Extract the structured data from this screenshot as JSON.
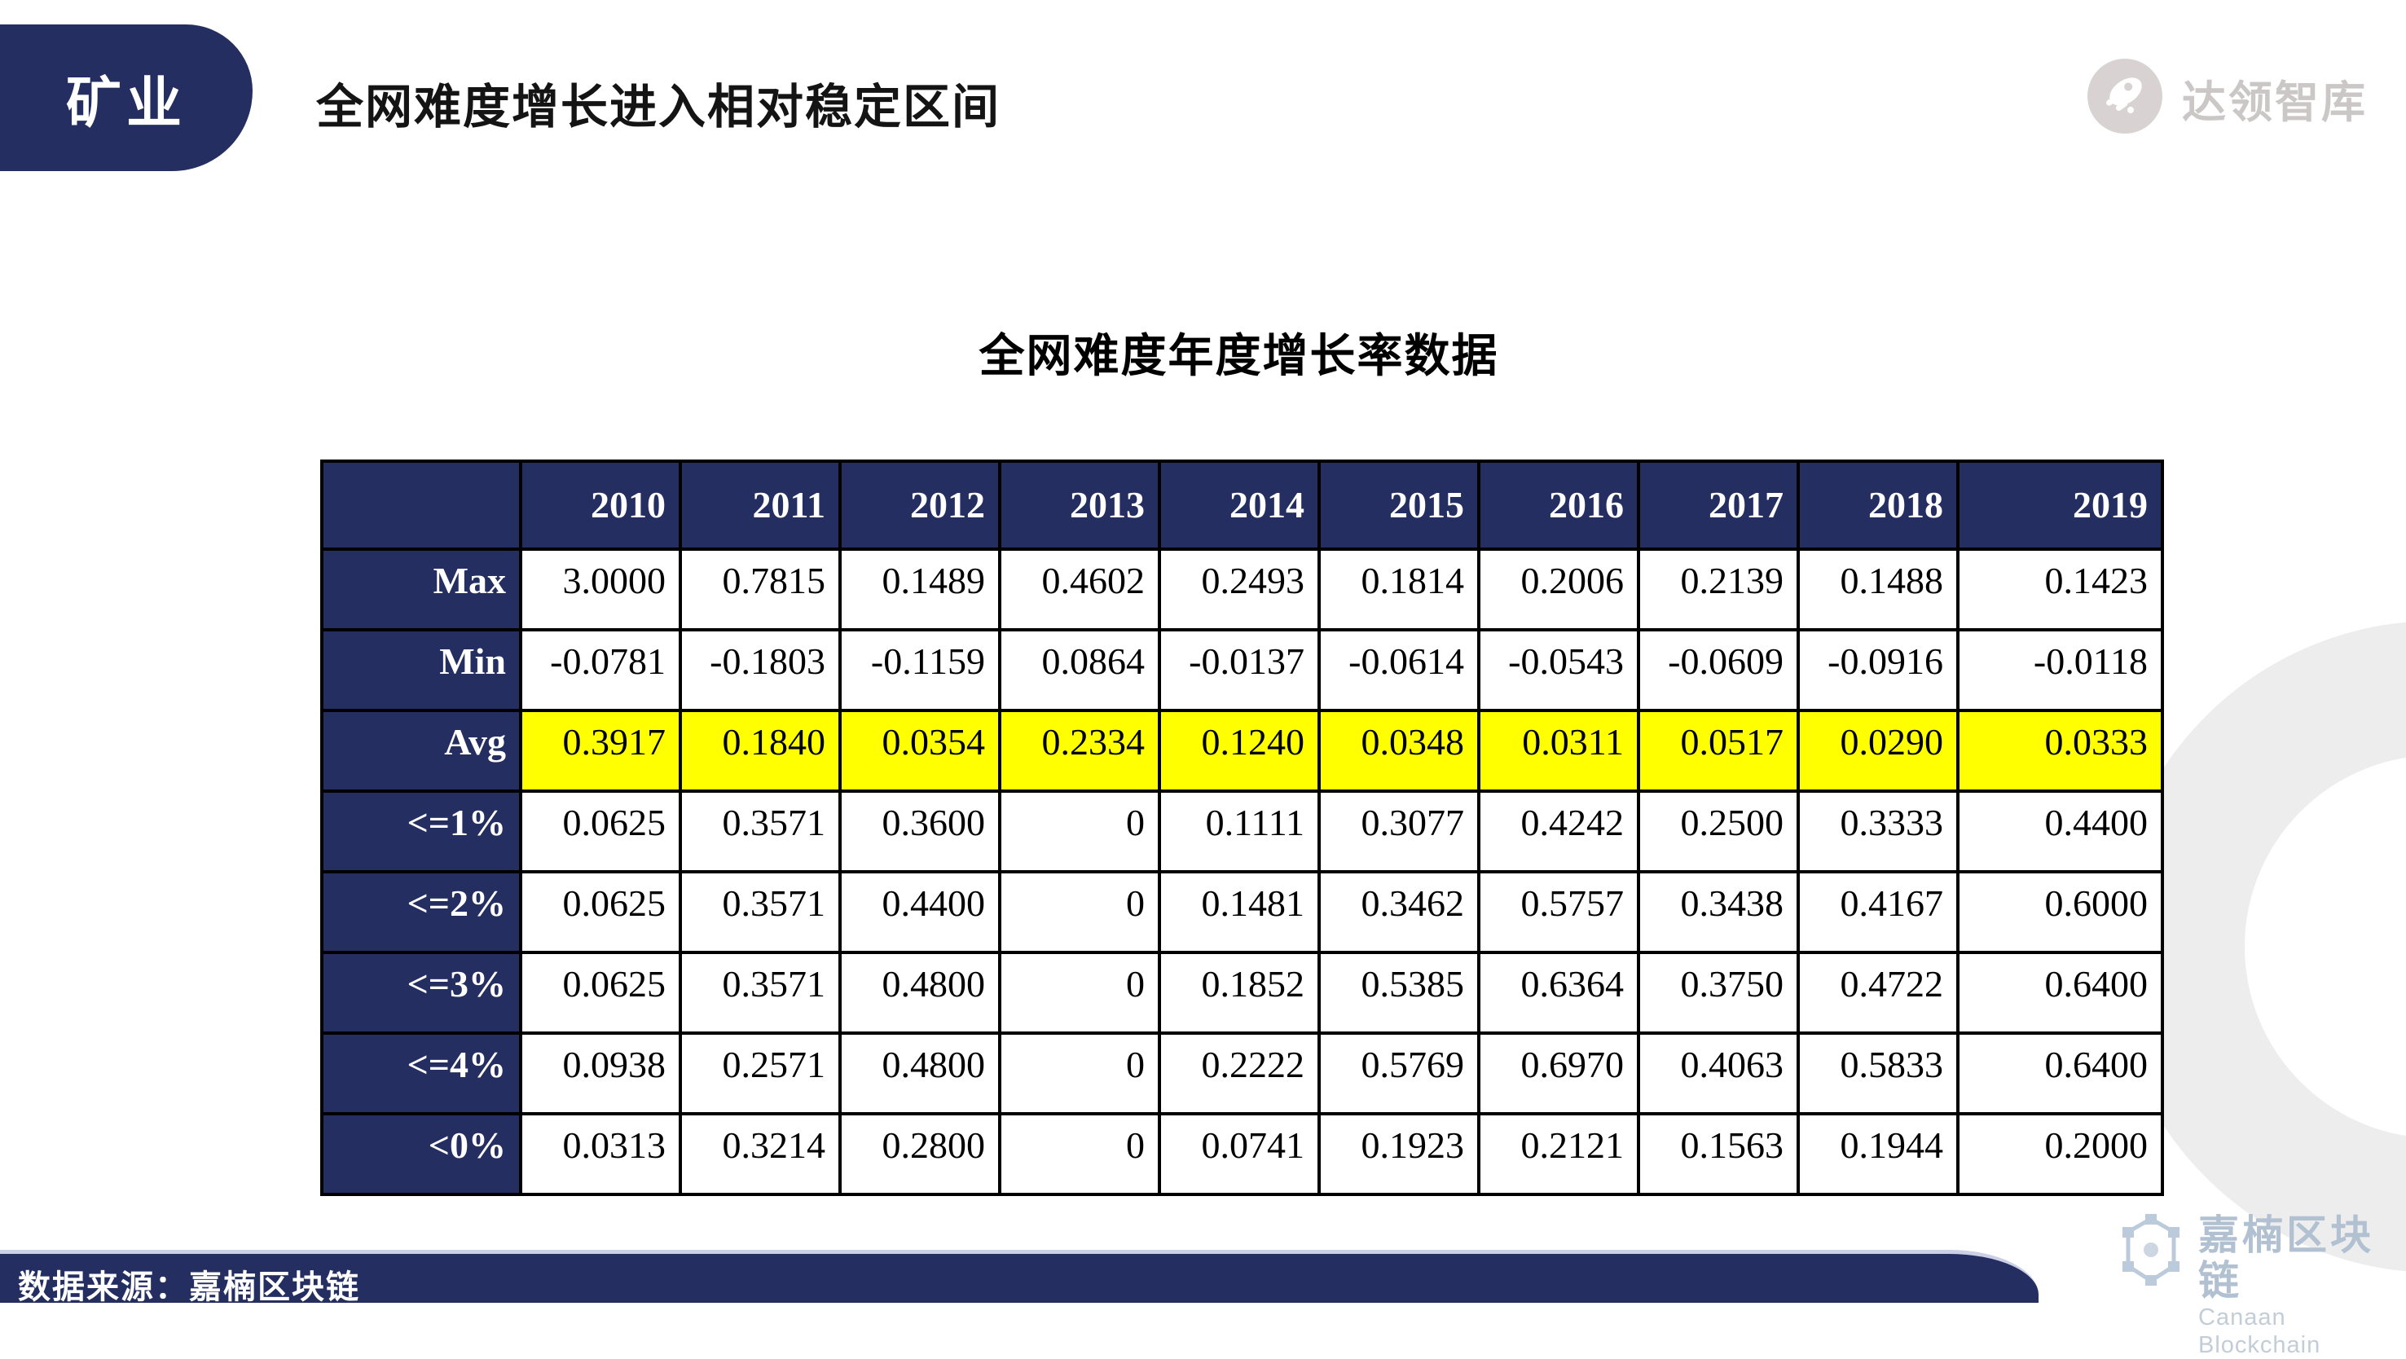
{
  "slide": {
    "badge_label": "矿业",
    "title": "全网难度增长进入相对稳定区间",
    "footer_source": "数据来源：嘉楠区块链"
  },
  "branding": {
    "top_logo_text": "达领智库",
    "bottom_logo_cn": "嘉楠区块链",
    "bottom_logo_en": "Canaan Blockchain"
  },
  "colors": {
    "navy": "#242e60",
    "highlight_yellow": "#ffff00",
    "top_logo_gray": "#cbc7c7",
    "canaan_blue_gray": "#b7c5d5"
  },
  "chart_data": {
    "type": "table",
    "title": "全网难度年度增长率数据",
    "columns": [
      "2010",
      "2011",
      "2012",
      "2013",
      "2014",
      "2015",
      "2016",
      "2017",
      "2018",
      "2019"
    ],
    "rows": [
      {
        "label": "Max",
        "values": [
          "3.0000",
          "0.7815",
          "0.1489",
          "0.4602",
          "0.2493",
          "0.1814",
          "0.2006",
          "0.2139",
          "0.1488",
          "0.1423"
        ]
      },
      {
        "label": "Min",
        "values": [
          "-0.0781",
          "-0.1803",
          "-0.1159",
          "0.0864",
          "-0.0137",
          "-0.0614",
          "-0.0543",
          "-0.0609",
          "-0.0916",
          "-0.0118"
        ]
      },
      {
        "label": "Avg",
        "values": [
          "0.3917",
          "0.1840",
          "0.0354",
          "0.2334",
          "0.1240",
          "0.0348",
          "0.0311",
          "0.0517",
          "0.0290",
          "0.0333"
        ],
        "highlight": true
      },
      {
        "label": "<=1%",
        "values": [
          "0.0625",
          "0.3571",
          "0.3600",
          "0",
          "0.1111",
          "0.3077",
          "0.4242",
          "0.2500",
          "0.3333",
          "0.4400"
        ]
      },
      {
        "label": "<=2%",
        "values": [
          "0.0625",
          "0.3571",
          "0.4400",
          "0",
          "0.1481",
          "0.3462",
          "0.5757",
          "0.3438",
          "0.4167",
          "0.6000"
        ]
      },
      {
        "label": "<=3%",
        "values": [
          "0.0625",
          "0.3571",
          "0.4800",
          "0",
          "0.1852",
          "0.5385",
          "0.6364",
          "0.3750",
          "0.4722",
          "0.6400"
        ]
      },
      {
        "label": "<=4%",
        "values": [
          "0.0938",
          "0.2571",
          "0.4800",
          "0",
          "0.2222",
          "0.5769",
          "0.6970",
          "0.4063",
          "0.5833",
          "0.6400"
        ]
      },
      {
        "label": "<0%",
        "values": [
          "0.0313",
          "0.3214",
          "0.2800",
          "0",
          "0.0741",
          "0.1923",
          "0.2121",
          "0.1563",
          "0.1944",
          "0.2000"
        ]
      }
    ],
    "layout": {
      "label_col_width": 244,
      "year_col_width": 196,
      "last_col_width": 251,
      "highlight_row": "Avg"
    }
  }
}
